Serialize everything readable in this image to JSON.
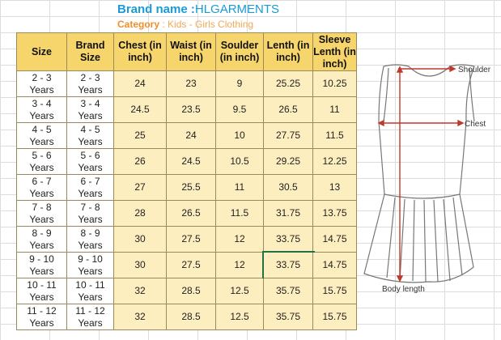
{
  "header": {
    "brand_label": "Brand name :",
    "brand": "HLGARMENTS",
    "category_label": "Category",
    "category": ": Kids - Girls Clothing"
  },
  "table": {
    "columns": [
      "Size",
      "Brand Size",
      "Chest (in inch)",
      "Waist (in inch)",
      "Soulder (in inch)",
      "Lenth (in inch)",
      "Sleeve Lenth (in inch)"
    ],
    "rows": [
      [
        "2 - 3\nYears",
        "2 - 3\nYears",
        "24",
        "23",
        "9",
        "25.25",
        "10.25"
      ],
      [
        "3 - 4\nYears",
        "3 - 4\nYears",
        "24.5",
        "23.5",
        "9.5",
        "26.5",
        "11"
      ],
      [
        "4 - 5\nYears",
        "4 - 5\nYears",
        "25",
        "24",
        "10",
        "27.75",
        "11.5"
      ],
      [
        "5 - 6\nYears",
        "5 - 6\nYears",
        "26",
        "24.5",
        "10.5",
        "29.25",
        "12.25"
      ],
      [
        "6 - 7\nYears",
        "6 - 7\nYears",
        "27",
        "25.5",
        "11",
        "30.5",
        "13"
      ],
      [
        "7 - 8\nYears",
        "7 - 8\nYears",
        "28",
        "26.5",
        "11.5",
        "31.75",
        "13.75"
      ],
      [
        "8 - 9\nYears",
        "8 - 9\nYears",
        "30",
        "27.5",
        "12",
        "33.75",
        "14.75"
      ],
      [
        "9 - 10\nYears",
        "9 - 10\nYears",
        "30",
        "27.5",
        "12",
        "33.75",
        "14.75"
      ],
      [
        "10 - 11\nYears",
        "10 - 11\nYears",
        "32",
        "28.5",
        "12.5",
        "35.75",
        "15.75"
      ],
      [
        "11 - 12\nYears",
        "11 - 12\nYears",
        "32",
        "28.5",
        "12.5",
        "35.75",
        "15.75"
      ]
    ]
  },
  "diagram": {
    "shoulder": "Shoulder",
    "chest": "Chest",
    "body_length": "Body length"
  }
}
